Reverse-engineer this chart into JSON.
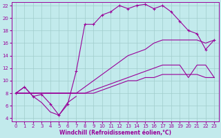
{
  "bg_color": "#c2eaec",
  "line_color": "#990099",
  "grid_color": "#a0cccc",
  "xlabel": "Windchill (Refroidissement éolien,°C)",
  "xlim_min": -0.5,
  "xlim_max": 23.5,
  "ylim_min": 3.5,
  "ylim_max": 22.5,
  "xticks": [
    0,
    1,
    2,
    3,
    4,
    5,
    6,
    7,
    8,
    9,
    10,
    11,
    12,
    13,
    14,
    15,
    16,
    17,
    18,
    19,
    20,
    21,
    22,
    23
  ],
  "yticks": [
    4,
    6,
    8,
    10,
    12,
    14,
    16,
    18,
    20,
    22
  ],
  "curve1_x": [
    0,
    1,
    2,
    3,
    4,
    5,
    6,
    7,
    8,
    9,
    10,
    11,
    12,
    13,
    14,
    15,
    16,
    17,
    18,
    19,
    20,
    21,
    22,
    23
  ],
  "curve1_y": [
    8.0,
    9.0,
    7.5,
    7.8,
    6.3,
    4.5,
    6.2,
    11.5,
    19.0,
    19.0,
    20.5,
    21.0,
    22.0,
    21.5,
    22.0,
    22.2,
    21.5,
    22.0,
    21.0,
    19.5,
    18.0,
    17.5,
    15.0,
    16.5
  ],
  "curve2_x": [
    0,
    1,
    2,
    3,
    4,
    5,
    6,
    7,
    8,
    9,
    10,
    11,
    12,
    13,
    14,
    15,
    16,
    17,
    18,
    19,
    20,
    21,
    22,
    23
  ],
  "curve2_y": [
    8.0,
    8.0,
    8.0,
    8.0,
    8.0,
    8.0,
    8.0,
    8.0,
    9.0,
    10.0,
    11.0,
    12.0,
    13.0,
    14.0,
    14.5,
    15.0,
    16.0,
    16.5,
    16.5,
    16.5,
    16.5,
    16.5,
    16.0,
    16.5
  ],
  "curve3_x": [
    0,
    1,
    2,
    3,
    4,
    5,
    6,
    7,
    8,
    9,
    10,
    11,
    12,
    13,
    14,
    15,
    16,
    17,
    18,
    19,
    20,
    21,
    22,
    23
  ],
  "curve3_y": [
    8.0,
    8.0,
    8.0,
    8.0,
    8.0,
    8.0,
    8.0,
    8.0,
    8.0,
    8.5,
    9.0,
    9.5,
    10.0,
    10.5,
    11.0,
    11.5,
    12.0,
    12.5,
    12.5,
    12.5,
    10.5,
    12.5,
    12.5,
    10.5
  ],
  "curve4_x": [
    0,
    1,
    2,
    3,
    4,
    5,
    6,
    7,
    8,
    9,
    10,
    11,
    12,
    13,
    14,
    15,
    16,
    17,
    18,
    19,
    20,
    21,
    22,
    23
  ],
  "curve4_y": [
    8.0,
    8.0,
    8.0,
    8.0,
    8.0,
    8.0,
    8.0,
    8.0,
    8.0,
    8.0,
    8.5,
    9.0,
    9.5,
    10.0,
    10.0,
    10.5,
    10.5,
    11.0,
    11.0,
    11.0,
    11.0,
    11.0,
    10.5,
    10.5
  ],
  "curve5_x": [
    0,
    1,
    2,
    3,
    4,
    5,
    6,
    7
  ],
  "curve5_y": [
    8.0,
    9.0,
    7.5,
    6.5,
    5.0,
    4.5,
    6.5,
    7.5
  ]
}
